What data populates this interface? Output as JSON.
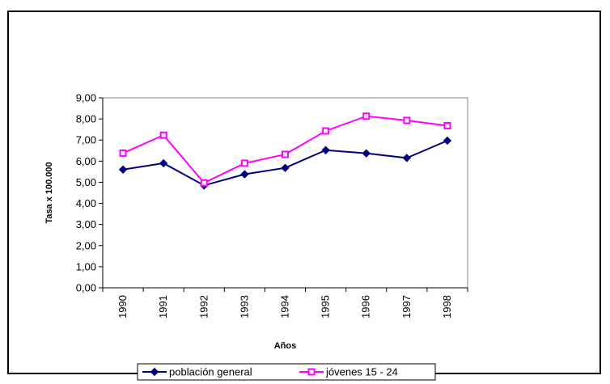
{
  "chart_data": {
    "type": "line",
    "title": "",
    "xlabel": "Años",
    "ylabel": "Tasa x 100.000",
    "categories": [
      "1990",
      "1991",
      "1992",
      "1993",
      "1994",
      "1995",
      "1996",
      "1997",
      "1998"
    ],
    "ylim": [
      0,
      9
    ],
    "yticks": [
      "0,00",
      "1,00",
      "2,00",
      "3,00",
      "4,00",
      "5,00",
      "6,00",
      "7,00",
      "8,00",
      "9,00"
    ],
    "grid": false,
    "legend_position": "bottom",
    "series": [
      {
        "name": "población general",
        "color": "#000080",
        "marker": "diamond",
        "values": [
          5.6,
          5.9,
          4.85,
          5.38,
          5.68,
          6.52,
          6.37,
          6.15,
          6.97
        ]
      },
      {
        "name": "jóvenes 15 - 24",
        "color": "#ff00ff",
        "marker": "square",
        "values": [
          6.38,
          7.23,
          4.97,
          5.9,
          6.32,
          7.43,
          8.13,
          7.93,
          7.68
        ]
      }
    ]
  }
}
